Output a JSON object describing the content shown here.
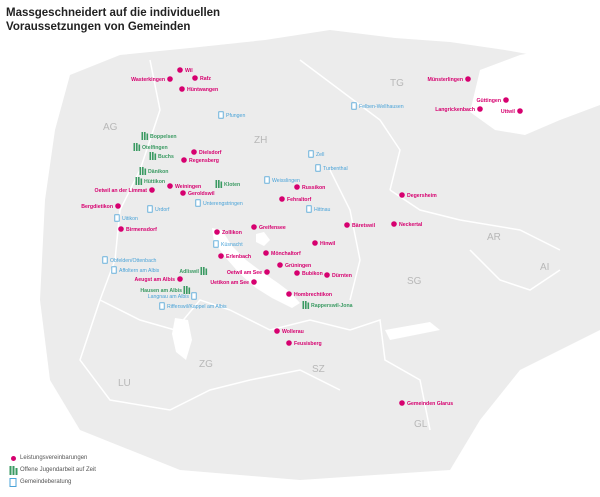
{
  "title": {
    "line1": "Massgeschneidert auf die individuellen",
    "line2": "Voraussetzungen von Gemeinden"
  },
  "colors": {
    "leistung": "#d6006f",
    "jugend": "#3a9a62",
    "beratung": "#4aa3d8",
    "land": "#ececec",
    "border": "#ffffff",
    "lake": "#ffffff"
  },
  "regions": [
    "AG",
    "TG",
    "ZH",
    "AR",
    "AI",
    "SG",
    "ZG",
    "LU",
    "SZ",
    "GL"
  ],
  "places": [
    {
      "name": "Wil",
      "type": "leistung",
      "label": "right"
    },
    {
      "name": "Wasterkingen",
      "type": "leistung",
      "label": "left"
    },
    {
      "name": "Rafz",
      "type": "leistung",
      "label": "right"
    },
    {
      "name": "Hüntwangen",
      "type": "leistung",
      "label": "right"
    },
    {
      "name": "Münsterlingen",
      "type": "leistung",
      "label": "left"
    },
    {
      "name": "Güttingen",
      "type": "leistung",
      "label": "left"
    },
    {
      "name": "Langrickenbach",
      "type": "leistung",
      "label": "left"
    },
    {
      "name": "Uttwil",
      "type": "leistung",
      "label": "left"
    },
    {
      "name": "Felben-Wellhausen",
      "type": "beratung",
      "label": "right"
    },
    {
      "name": "Pfungen",
      "type": "beratung",
      "label": "right"
    },
    {
      "name": "Boppelsen",
      "type": "jugend",
      "label": "right"
    },
    {
      "name": "Otelfingen",
      "type": "jugend",
      "label": "right"
    },
    {
      "name": "Buchs",
      "type": "jugend",
      "label": "right"
    },
    {
      "name": "Dielsdorf",
      "type": "leistung",
      "label": "right"
    },
    {
      "name": "Regensberg",
      "type": "leistung",
      "label": "right"
    },
    {
      "name": "Zell",
      "type": "beratung",
      "label": "right"
    },
    {
      "name": "Turbenthal",
      "type": "beratung",
      "label": "right"
    },
    {
      "name": "Dänikon",
      "type": "jugend",
      "label": "right"
    },
    {
      "name": "Hüttikon",
      "type": "jugend",
      "label": "right"
    },
    {
      "name": "Oetwil an der Limmat",
      "type": "leistung",
      "label": "left"
    },
    {
      "name": "Weiningen",
      "type": "leistung",
      "label": "right"
    },
    {
      "name": "Geroldswil",
      "type": "leistung",
      "label": "right"
    },
    {
      "name": "Kloten",
      "type": "jugend",
      "label": "right"
    },
    {
      "name": "Weisslingen",
      "type": "beratung",
      "label": "right"
    },
    {
      "name": "Russikon",
      "type": "leistung",
      "label": "right"
    },
    {
      "name": "Unterengstringen",
      "type": "beratung",
      "label": "right"
    },
    {
      "name": "Fehraltorf",
      "type": "leistung",
      "label": "right"
    },
    {
      "name": "Bergdietikon",
      "type": "leistung",
      "label": "left"
    },
    {
      "name": "Urdorf",
      "type": "beratung",
      "label": "right"
    },
    {
      "name": "Hittnau",
      "type": "beratung",
      "label": "right"
    },
    {
      "name": "Degersheim",
      "type": "leistung",
      "label": "right"
    },
    {
      "name": "Uitikon",
      "type": "beratung",
      "label": "right"
    },
    {
      "name": "Birmensdorf",
      "type": "leistung",
      "label": "right"
    },
    {
      "name": "Zollikon",
      "type": "leistung",
      "label": "right"
    },
    {
      "name": "Greifensee",
      "type": "leistung",
      "label": "right"
    },
    {
      "name": "Bäretswil",
      "type": "leistung",
      "label": "right"
    },
    {
      "name": "Neckertal",
      "type": "leistung",
      "label": "right"
    },
    {
      "name": "Küsnacht",
      "type": "beratung",
      "label": "right"
    },
    {
      "name": "Hinwil",
      "type": "leistung",
      "label": "right"
    },
    {
      "name": "Erlenbach",
      "type": "leistung",
      "label": "right"
    },
    {
      "name": "Mönchaltorf",
      "type": "leistung",
      "label": "right"
    },
    {
      "name": "Obfelden/Ottenbach",
      "type": "beratung",
      "label": "right"
    },
    {
      "name": "Affoltern am Albis",
      "type": "beratung",
      "label": "right"
    },
    {
      "name": "Adliswil",
      "type": "jugend",
      "label": "left"
    },
    {
      "name": "Grüningen",
      "type": "leistung",
      "label": "right"
    },
    {
      "name": "Oetwil am See",
      "type": "leistung",
      "label": "left"
    },
    {
      "name": "Bubikon",
      "type": "leistung",
      "label": "right"
    },
    {
      "name": "Dürnten",
      "type": "leistung",
      "label": "right"
    },
    {
      "name": "Aeugst am Albis",
      "type": "leistung",
      "label": "left"
    },
    {
      "name": "Uetikon am See",
      "type": "leistung",
      "label": "left"
    },
    {
      "name": "Hausen am Albis",
      "type": "jugend",
      "label": "left"
    },
    {
      "name": "Langnau am Albis",
      "type": "beratung",
      "label": "left"
    },
    {
      "name": "Hombrechtikon",
      "type": "leistung",
      "label": "right"
    },
    {
      "name": "Rifferswil/Kappel am Albis",
      "type": "beratung",
      "label": "right"
    },
    {
      "name": "Rapperswil-Jona",
      "type": "jugend",
      "label": "right"
    },
    {
      "name": "Wollerau",
      "type": "leistung",
      "label": "right"
    },
    {
      "name": "Feusisberg",
      "type": "leistung",
      "label": "right"
    },
    {
      "name": "Gemeinden Glarus",
      "type": "leistung",
      "label": "right"
    }
  ],
  "legend": [
    {
      "type": "leistung",
      "label": "Leistungsvereinbarungen"
    },
    {
      "type": "jugend",
      "label": "Offene Jugendarbeit auf Zeit"
    },
    {
      "type": "beratung",
      "label": "Gemeindeberatung"
    }
  ]
}
